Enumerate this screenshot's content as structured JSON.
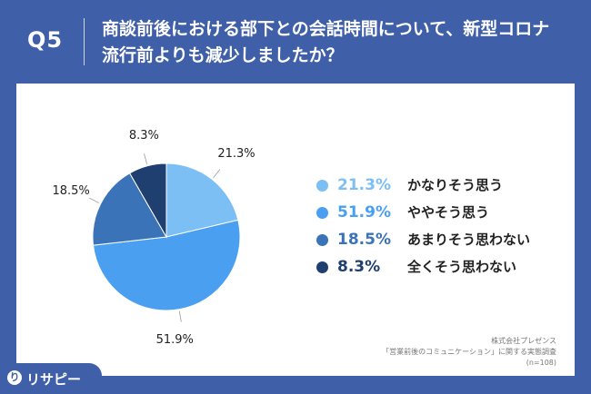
{
  "header": {
    "qlabel": "Q5",
    "title_line1": "商談前後における部下との会話時間について、新型コロナ",
    "title_line2": "流行前よりも減少しましたか？"
  },
  "chart_data": {
    "type": "pie",
    "title": "",
    "slices": [
      {
        "label": "かなりそう思う",
        "value": 21.3,
        "value_label": "21.3%",
        "color": "#7cbff5"
      },
      {
        "label": "ややそう思う",
        "value": 51.9,
        "value_label": "51.9%",
        "color": "#4a9ff0"
      },
      {
        "label": "あまりそう思わない",
        "value": 18.5,
        "value_label": "18.5%",
        "color": "#3a73b8"
      },
      {
        "label": "全くそう思わない",
        "value": 8.3,
        "value_label": "8.3%",
        "color": "#1f3f70"
      }
    ],
    "legend_placement": "right"
  },
  "source": {
    "line1": "株式会社プレゼンス",
    "line2": "「営業前後のコミュニケーション」に関する実態調査",
    "line3": "(n=108)"
  },
  "logo": {
    "icon_text": "り",
    "text": "リサピー"
  }
}
